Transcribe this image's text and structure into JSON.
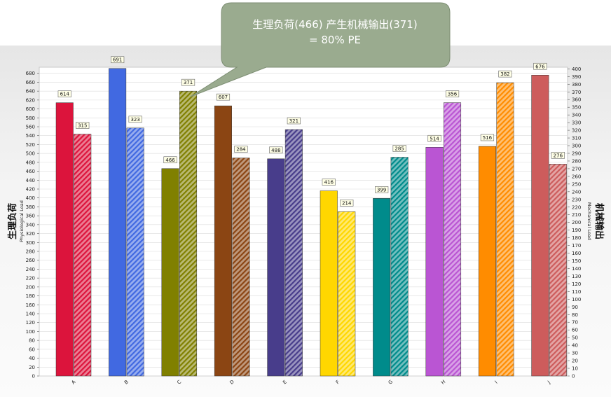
{
  "callout": {
    "line1": "生理负荷(466) 产生机械输出(371)",
    "line2": "= 80% PE"
  },
  "colors": {
    "callout_fill": "#9aab8f",
    "callout_stroke": "#7d8e73",
    "label_box_fill": "#ffffe6"
  },
  "chart_data": {
    "type": "bar",
    "categories": [
      "A",
      "B",
      "C",
      "D",
      "E",
      "F",
      "G",
      "H",
      "I",
      "J"
    ],
    "series": [
      {
        "axis": "left",
        "values": [
          614,
          691,
          466,
          607,
          488,
          416,
          399,
          514,
          516,
          676
        ],
        "pattern": "solid"
      },
      {
        "axis": "right",
        "values": [
          315,
          323,
          371,
          284,
          321,
          214,
          285,
          356,
          382,
          276
        ],
        "pattern": "hatched"
      }
    ],
    "bar_colors": [
      "#dc143c",
      "#4169e1",
      "#808000",
      "#8b4513",
      "#483d8b",
      "#ffd700",
      "#008b8b",
      "#ba55d3",
      "#ff8c00",
      "#cd5c5c"
    ],
    "y_left": {
      "label_cn": "生理负荷",
      "label_en": "Physiological Load",
      "ylim": [
        0,
        690
      ],
      "tick_step": 20
    },
    "y_right": {
      "label_cn": "机械输出",
      "label_en": "Mechanical Load",
      "ylim": [
        0,
        400
      ],
      "tick_step": 10
    },
    "grid": true,
    "legend": "none"
  }
}
